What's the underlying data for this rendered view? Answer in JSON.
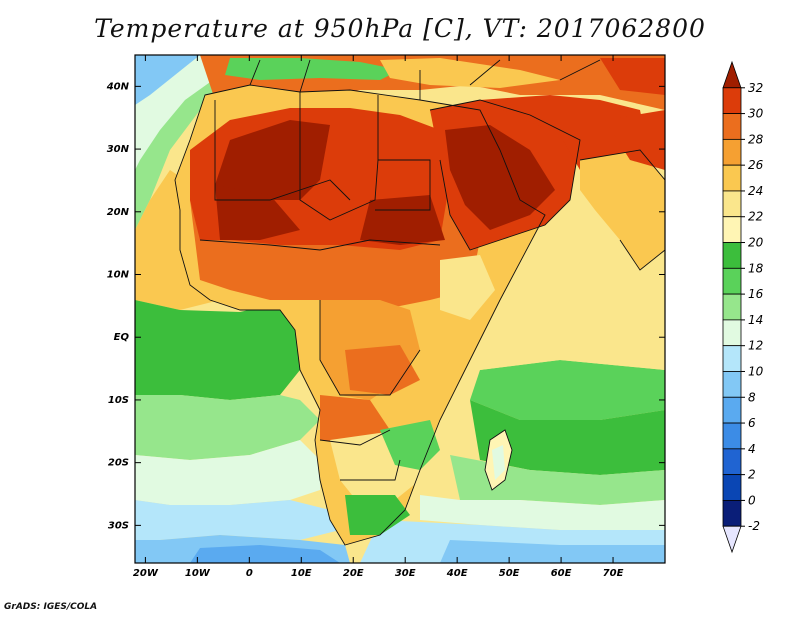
{
  "title": "Temperature at 950hPa [C], VT: 2017062800",
  "credit": "GrADS: IGES/COLA",
  "map": {
    "lat_labels": [
      {
        "value": 40,
        "text": "40N"
      },
      {
        "value": 30,
        "text": "30N"
      },
      {
        "value": 20,
        "text": "20N"
      },
      {
        "value": 10,
        "text": "10N"
      },
      {
        "value": 0,
        "text": "EQ"
      },
      {
        "value": -10,
        "text": "10S"
      },
      {
        "value": -20,
        "text": "20S"
      },
      {
        "value": -30,
        "text": "30S"
      }
    ],
    "lon_labels": [
      {
        "value": -20,
        "text": "20W"
      },
      {
        "value": -10,
        "text": "10W"
      },
      {
        "value": 0,
        "text": "0"
      },
      {
        "value": 10,
        "text": "10E"
      },
      {
        "value": 20,
        "text": "20E"
      },
      {
        "value": 30,
        "text": "30E"
      },
      {
        "value": 40,
        "text": "40E"
      },
      {
        "value": 50,
        "text": "50E"
      },
      {
        "value": 60,
        "text": "60E"
      },
      {
        "value": 70,
        "text": "70E"
      }
    ],
    "extent": {
      "lon_min": -22,
      "lon_max": 80,
      "lat_min": -36,
      "lat_max": 45
    }
  },
  "colorbar": {
    "levels": [
      "32",
      "30",
      "28",
      "26",
      "24",
      "22",
      "20",
      "18",
      "16",
      "14",
      "12",
      "10",
      "8",
      "6",
      "4",
      "2",
      "0",
      "-2"
    ],
    "colors": [
      "#a01e00",
      "#dc3c0a",
      "#eb6e1e",
      "#f5a032",
      "#fac850",
      "#fae68c",
      "#fff5b4",
      "#3cbe3c",
      "#5ad25a",
      "#96e68c",
      "#e1fae1",
      "#b4e6fa",
      "#82c8f5",
      "#5aaaf0",
      "#3c8ce6",
      "#2064d2",
      "#0a46b4",
      "#0a1e78",
      "#e6e6ff"
    ]
  }
}
